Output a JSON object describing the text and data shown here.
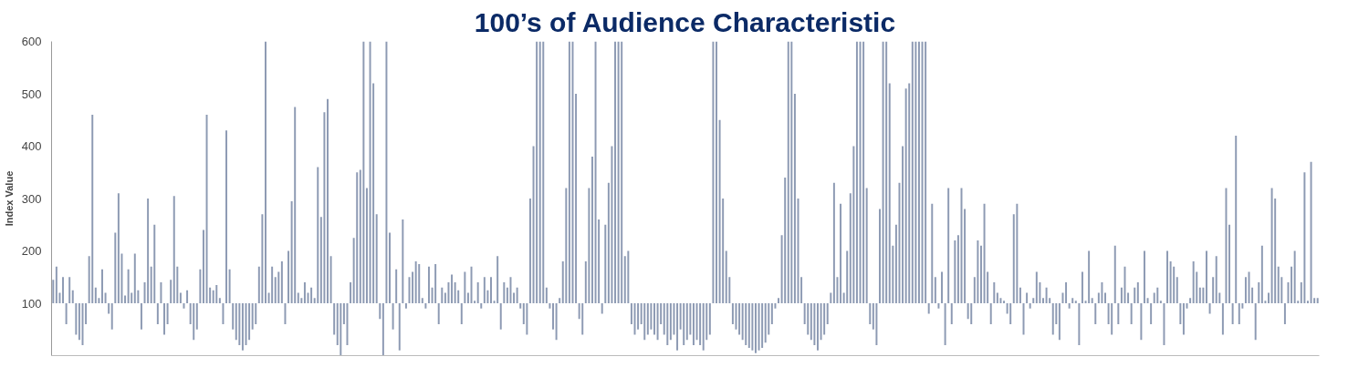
{
  "chart_data": {
    "type": "bar",
    "title": "100’s of Audience Characteristic",
    "ylabel": "Index Value",
    "color": "#8d9ab3",
    "ylim": [
      0,
      600
    ],
    "yticks": [
      100,
      200,
      300,
      400,
      500,
      600
    ],
    "grid": false,
    "categories": [
      null,
      null,
      null,
      null,
      null,
      null,
      null,
      null,
      null,
      null,
      null,
      null,
      null,
      null,
      null,
      null,
      null,
      null,
      null,
      null,
      null,
      null,
      null,
      null,
      null,
      null,
      null,
      null,
      null,
      null,
      null,
      null,
      null,
      null,
      null,
      null,
      null,
      null,
      null,
      null,
      null,
      null,
      null,
      null,
      null,
      null,
      null,
      null,
      null,
      null,
      null,
      null,
      null,
      null,
      null,
      null,
      null,
      null,
      null,
      null,
      null,
      null,
      null,
      null,
      null,
      null,
      null,
      null,
      null,
      null,
      null,
      null,
      null,
      null,
      null,
      null,
      null,
      null,
      null,
      null,
      null,
      null,
      null,
      null,
      null,
      null,
      null,
      null,
      null,
      null,
      null,
      null,
      null,
      null,
      null,
      null,
      null,
      null,
      null,
      null,
      null,
      null,
      null,
      null,
      null,
      null,
      null,
      null,
      null,
      null,
      null,
      null,
      null,
      null,
      null,
      null,
      null,
      null,
      null,
      null,
      null,
      null,
      null,
      null,
      null,
      null,
      null,
      null,
      null,
      null,
      null,
      null,
      null,
      null,
      null,
      null,
      null,
      null,
      null,
      null,
      null,
      null,
      null,
      null,
      null,
      null,
      null,
      null,
      null,
      null,
      null,
      null,
      null,
      null,
      null,
      null,
      null,
      null,
      null,
      null,
      null,
      null,
      null,
      null,
      null,
      null,
      null,
      null,
      null,
      null,
      null,
      null,
      null,
      null,
      null,
      null,
      null,
      null,
      null,
      null,
      null,
      null,
      null,
      null,
      null,
      null,
      null,
      null,
      null,
      null,
      null,
      null,
      null,
      null,
      null,
      null,
      null,
      null,
      null,
      null,
      null,
      null,
      null,
      null,
      null,
      null,
      null,
      null,
      null,
      null,
      null,
      null,
      null,
      null,
      null,
      null,
      null,
      null,
      null,
      null,
      null,
      null,
      null,
      null,
      null,
      null,
      null,
      null,
      null,
      null,
      null,
      null,
      null,
      null,
      null,
      null,
      null,
      null,
      null,
      null,
      null,
      null,
      null,
      null,
      null,
      null,
      null,
      null,
      null,
      null,
      null,
      null,
      null,
      null,
      null,
      null,
      null,
      null,
      null,
      null,
      null,
      null,
      null,
      null,
      null,
      null,
      null,
      null,
      null,
      null,
      null,
      null,
      null,
      null,
      null,
      null,
      null,
      null,
      null,
      null,
      null,
      null,
      null,
      null,
      null,
      null,
      null,
      null,
      null,
      null,
      null,
      null,
      null,
      null,
      null,
      null,
      null,
      null,
      null,
      null,
      null,
      null,
      null,
      null,
      null,
      null,
      null,
      null,
      null,
      null,
      null,
      null,
      null,
      null,
      null,
      null,
      null,
      null,
      null,
      null,
      null,
      null,
      null,
      null,
      null,
      null,
      null,
      null,
      null,
      null,
      null,
      null,
      null,
      null,
      null,
      null,
      null,
      null,
      null,
      null,
      null,
      null,
      null,
      null,
      null,
      null,
      null,
      null,
      null,
      null,
      null,
      null,
      null,
      null,
      null,
      null,
      null,
      null,
      null,
      null,
      null,
      null,
      null,
      null,
      null,
      null,
      null,
      null,
      null,
      null,
      null,
      null,
      null,
      null,
      null,
      null,
      null,
      null,
      null,
      null,
      null,
      null,
      null,
      null,
      null,
      null,
      null,
      null
    ],
    "base": [
      100,
      100,
      100,
      100,
      100,
      100,
      100,
      100,
      100,
      100,
      100,
      100,
      100,
      100,
      100,
      100,
      100,
      100,
      100,
      100,
      100,
      100,
      100,
      100,
      100,
      100,
      100,
      100,
      100,
      100,
      100,
      100,
      100,
      100,
      100,
      100,
      100,
      100,
      100,
      100,
      100,
      100,
      100,
      100,
      100,
      100,
      100,
      100,
      100,
      100,
      100,
      100,
      100,
      100,
      100,
      100,
      100,
      100,
      100,
      100,
      100,
      100,
      100,
      100,
      100,
      100,
      100,
      100,
      100,
      100,
      100,
      100,
      100,
      100,
      100,
      100,
      100,
      100,
      100,
      100,
      100,
      100,
      100,
      100,
      100,
      100,
      100,
      100,
      100,
      100,
      100,
      100,
      100,
      100,
      100,
      100,
      100,
      100,
      100,
      100,
      100,
      100,
      100,
      100,
      100,
      100,
      100,
      100,
      100,
      100,
      100,
      100,
      100,
      100,
      100,
      100,
      100,
      100,
      100,
      100,
      100,
      100,
      100,
      100,
      100,
      100,
      100,
      100,
      100,
      100,
      100,
      100,
      100,
      100,
      100,
      100,
      100,
      100,
      100,
      100,
      100,
      100,
      100,
      100,
      100,
      100,
      100,
      100,
      100,
      100,
      100,
      100,
      100,
      100,
      100,
      100,
      100,
      100,
      100,
      100,
      100,
      100,
      100,
      100,
      100,
      100,
      100,
      100,
      100,
      100,
      100,
      100,
      100,
      100,
      100,
      100,
      100,
      100,
      100,
      100,
      100,
      100,
      100,
      100,
      100,
      100,
      100,
      100,
      100,
      100,
      100,
      100,
      100,
      100,
      100,
      100,
      100,
      100,
      100,
      100,
      100,
      100,
      100,
      100,
      100,
      100,
      100,
      100,
      100,
      100,
      100,
      100,
      100,
      100,
      100,
      100,
      100,
      100,
      100,
      100,
      100,
      100,
      100,
      100,
      100,
      100,
      100,
      100,
      100,
      100,
      100,
      100,
      100,
      100,
      100,
      100,
      100,
      100,
      100,
      100,
      100,
      100,
      100,
      100,
      100,
      100,
      100,
      100,
      100,
      100,
      100,
      100,
      100,
      100,
      100,
      100,
      100,
      100,
      100,
      100,
      100,
      100,
      100,
      100,
      100,
      100,
      100,
      100,
      100,
      100,
      100,
      100,
      100,
      100,
      100,
      100,
      100,
      100,
      100,
      100,
      100,
      100,
      100,
      100,
      100,
      100,
      100,
      100,
      100,
      100,
      100,
      100,
      100,
      100,
      100,
      100,
      100,
      100,
      100,
      100,
      100,
      100,
      100,
      100,
      100,
      100,
      100,
      100,
      100,
      100,
      100,
      100,
      100,
      100,
      100,
      100,
      100,
      100,
      100,
      100,
      100,
      100,
      100,
      100,
      100,
      100,
      100,
      100,
      100,
      100,
      100,
      100,
      100,
      100,
      100,
      100,
      100,
      100,
      100,
      100,
      100,
      100,
      100,
      100,
      100,
      100,
      100,
      100,
      100,
      100,
      100,
      100,
      100,
      100,
      100,
      100,
      100,
      100,
      100,
      100,
      100,
      100,
      100,
      100,
      100,
      100,
      100,
      100,
      100,
      100,
      100,
      100,
      100,
      100,
      100,
      100,
      100,
      100,
      100,
      100,
      100,
      100,
      100,
      100,
      100,
      100,
      100,
      100
    ],
    "values": [
      45,
      70,
      20,
      50,
      -40,
      50,
      25,
      -60,
      -70,
      -80,
      -40,
      90,
      360,
      30,
      10,
      65,
      20,
      -20,
      -50,
      135,
      210,
      95,
      15,
      65,
      20,
      95,
      25,
      -50,
      40,
      200,
      70,
      150,
      -40,
      40,
      -60,
      -40,
      45,
      205,
      70,
      20,
      -10,
      25,
      -40,
      -70,
      -50,
      65,
      140,
      360,
      30,
      25,
      35,
      10,
      -40,
      330,
      65,
      -50,
      -70,
      -80,
      -90,
      -80,
      -70,
      -50,
      -40,
      70,
      170,
      500,
      20,
      70,
      50,
      60,
      80,
      -40,
      100,
      195,
      375,
      20,
      10,
      40,
      20,
      30,
      10,
      260,
      165,
      365,
      390,
      90,
      -60,
      -80,
      -100,
      -40,
      -80,
      40,
      125,
      250,
      255,
      500,
      220,
      500,
      420,
      170,
      -30,
      -100,
      500,
      135,
      -50,
      65,
      -90,
      160,
      -10,
      50,
      60,
      80,
      75,
      10,
      -10,
      70,
      30,
      75,
      -40,
      30,
      20,
      40,
      55,
      40,
      25,
      -40,
      60,
      20,
      70,
      5,
      40,
      -10,
      50,
      25,
      50,
      5,
      90,
      -50,
      40,
      30,
      50,
      20,
      30,
      -10,
      -40,
      -60,
      200,
      300,
      500,
      500,
      500,
      30,
      -10,
      -50,
      -70,
      10,
      80,
      220,
      500,
      500,
      400,
      -30,
      -60,
      80,
      220,
      280,
      500,
      160,
      -20,
      150,
      230,
      300,
      500,
      500,
      500,
      90,
      100,
      -40,
      -60,
      -50,
      -40,
      -70,
      -60,
      -50,
      -60,
      -70,
      -40,
      -60,
      -80,
      -70,
      -60,
      -90,
      -50,
      -80,
      -70,
      -60,
      -80,
      -70,
      -80,
      -90,
      -70,
      -60,
      500,
      500,
      350,
      200,
      100,
      50,
      -40,
      -50,
      -60,
      -70,
      -80,
      -85,
      -90,
      -95,
      -90,
      -85,
      -75,
      -60,
      -40,
      -10,
      10,
      130,
      240,
      500,
      500,
      400,
      200,
      50,
      -40,
      -60,
      -70,
      -80,
      -90,
      -70,
      -60,
      -40,
      20,
      230,
      50,
      190,
      20,
      100,
      210,
      300,
      500,
      500,
      500,
      220,
      -40,
      -50,
      -80,
      180,
      500,
      500,
      420,
      110,
      150,
      230,
      300,
      410,
      420,
      500,
      500,
      500,
      500,
      500,
      -20,
      190,
      50,
      -10,
      60,
      -80,
      220,
      -40,
      120,
      130,
      220,
      180,
      -30,
      -40,
      50,
      120,
      110,
      190,
      60,
      -40,
      40,
      20,
      10,
      5,
      -20,
      -40,
      170,
      190,
      30,
      -60,
      20,
      -10,
      10,
      60,
      40,
      10,
      30,
      10,
      -60,
      -40,
      -70,
      20,
      40,
      -10,
      10,
      5,
      -80,
      60,
      5,
      100,
      10,
      -40,
      20,
      40,
      20,
      -40,
      -60,
      110,
      -40,
      30,
      70,
      20,
      -40,
      30,
      40,
      -70,
      100,
      10,
      -40,
      20,
      30,
      5,
      -80,
      100,
      80,
      70,
      50,
      -40,
      -60,
      -10,
      10,
      80,
      60,
      30,
      30,
      100,
      -20,
      50,
      90,
      20,
      -60,
      220,
      150,
      -40,
      320,
      -40,
      -10,
      50,
      60,
      30,
      -70,
      40,
      110,
      5,
      20,
      220,
      200,
      70,
      50,
      -40,
      40,
      70,
      100,
      5,
      40,
      250,
      5,
      270,
      10,
      10
    ]
  }
}
